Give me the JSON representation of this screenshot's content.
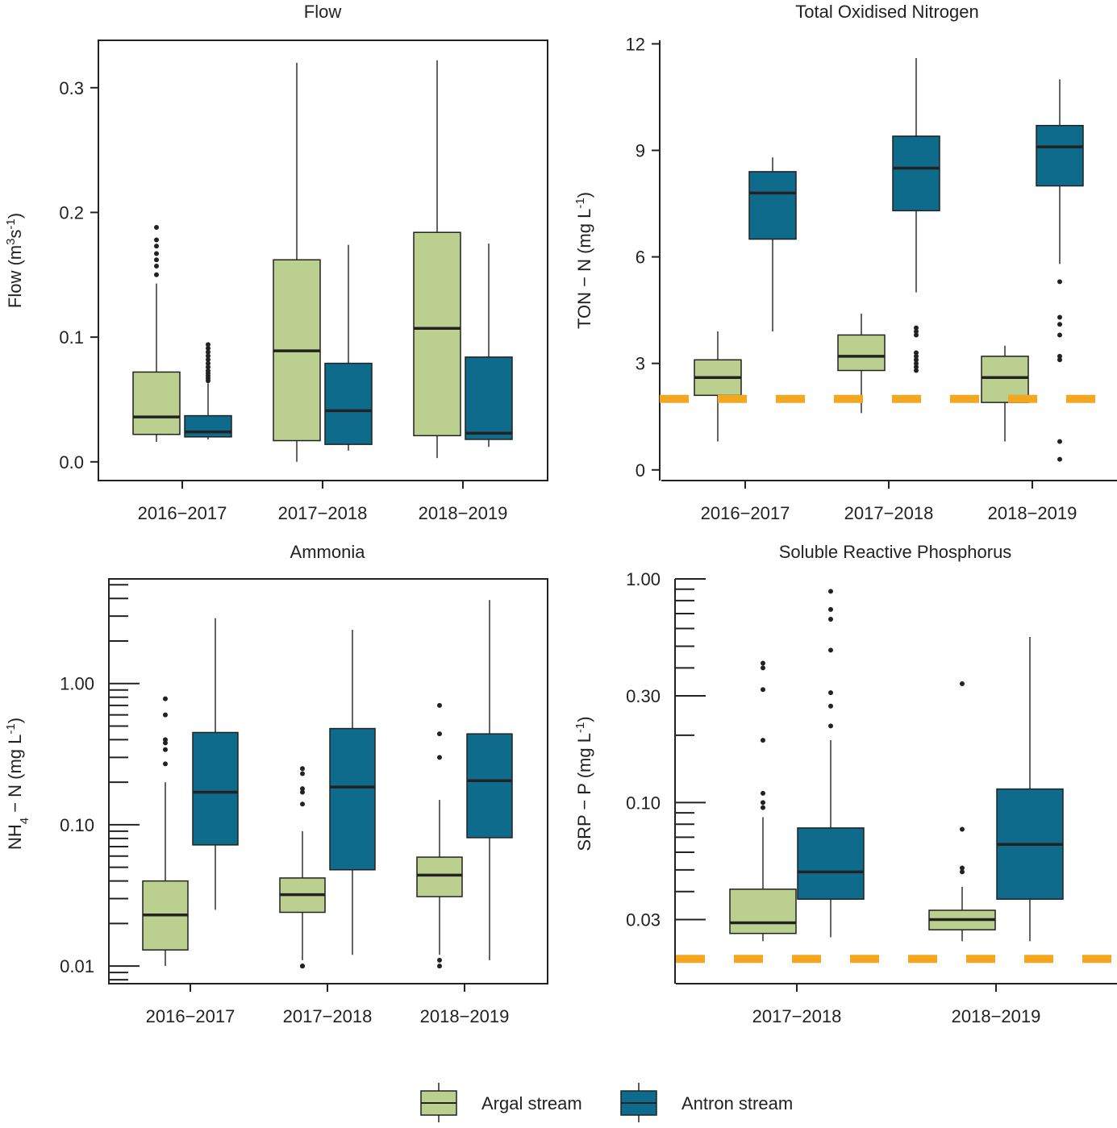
{
  "colors": {
    "argal": "#bbcf8f",
    "antron": "#0f6b8c",
    "threshold": "#f3a620"
  },
  "legend": {
    "position": "bottom-center",
    "items": [
      {
        "label": "Argal stream",
        "color": "#bbcf8f"
      },
      {
        "label": "Antron stream",
        "color": "#0f6b8c"
      }
    ]
  },
  "chart_data": [
    {
      "id": "flow",
      "type": "box",
      "title": "Flow",
      "ylabel": "Flow (m³s⁻¹)",
      "scale": "linear",
      "ylim": [
        -0.015,
        0.338
      ],
      "yticks": [
        0,
        0.1,
        0.2,
        0.3
      ],
      "ytick_labels": [
        "0.0",
        "0.1",
        "0.2",
        "0.3"
      ],
      "categories": [
        "2016−2017",
        "2017−2018",
        "2018−2019"
      ],
      "series": [
        {
          "name": "Argal stream",
          "boxes": [
            {
              "min": 0.016,
              "q1": 0.022,
              "median": 0.036,
              "q3": 0.072,
              "max": 0.143,
              "outliers": [
                0.15,
                0.157,
                0.162,
                0.167,
                0.173,
                0.178,
                0.188
              ]
            },
            {
              "min": 0.0,
              "q1": 0.017,
              "median": 0.089,
              "q3": 0.162,
              "max": 0.32,
              "outliers": []
            },
            {
              "min": 0.003,
              "q1": 0.021,
              "median": 0.107,
              "q3": 0.184,
              "max": 0.322,
              "outliers": []
            }
          ]
        },
        {
          "name": "Antron stream",
          "boxes": [
            {
              "min": 0.018,
              "q1": 0.02,
              "median": 0.024,
              "q3": 0.037,
              "max": 0.063,
              "outliers": [
                0.065,
                0.067,
                0.069,
                0.071,
                0.073,
                0.076,
                0.079,
                0.082,
                0.085,
                0.088,
                0.091,
                0.094
              ]
            },
            {
              "min": 0.009,
              "q1": 0.014,
              "median": 0.041,
              "q3": 0.079,
              "max": 0.174,
              "outliers": []
            },
            {
              "min": 0.012,
              "q1": 0.018,
              "median": 0.023,
              "q3": 0.084,
              "max": 0.175,
              "outliers": []
            }
          ]
        }
      ]
    },
    {
      "id": "ton",
      "type": "box",
      "title": "Total Oxidised Nitrogen",
      "ylabel": "TON − N (mg L⁻¹)",
      "scale": "linear",
      "ylim": [
        -0.3,
        12.1
      ],
      "yticks": [
        0,
        3,
        6,
        9,
        12
      ],
      "ytick_labels": [
        "0",
        "3",
        "6",
        "9",
        "12"
      ],
      "threshold": 2.0,
      "categories": [
        "2016−2017",
        "2017−2018",
        "2018−2019"
      ],
      "series": [
        {
          "name": "Argal stream",
          "boxes": [
            {
              "min": 0.8,
              "q1": 2.1,
              "median": 2.6,
              "q3": 3.1,
              "max": 3.9,
              "outliers": []
            },
            {
              "min": 1.6,
              "q1": 2.8,
              "median": 3.2,
              "q3": 3.8,
              "max": 4.4,
              "outliers": []
            },
            {
              "min": 0.8,
              "q1": 1.9,
              "median": 2.6,
              "q3": 3.2,
              "max": 3.5,
              "outliers": []
            }
          ]
        },
        {
          "name": "Antron stream",
          "boxes": [
            {
              "min": 3.9,
              "q1": 6.5,
              "median": 7.8,
              "q3": 8.4,
              "max": 8.8,
              "outliers": []
            },
            {
              "min": 5.0,
              "q1": 7.3,
              "median": 8.5,
              "q3": 9.4,
              "max": 11.6,
              "outliers": [
                2.8,
                2.9,
                3.0,
                3.1,
                3.2,
                3.3,
                3.8,
                3.9,
                4.0
              ]
            },
            {
              "min": 5.8,
              "q1": 8.0,
              "median": 9.1,
              "q3": 9.7,
              "max": 11.0,
              "outliers": [
                0.3,
                0.8,
                3.1,
                3.2,
                3.8,
                4.1,
                4.3,
                5.3
              ]
            }
          ]
        }
      ]
    },
    {
      "id": "ammonia",
      "type": "box",
      "title": "Ammonia",
      "ylabel": "NH₄ − N (mg L⁻¹)",
      "scale": "log",
      "ylim": [
        0.0075,
        5.5
      ],
      "yticks": [
        0.01,
        0.1,
        1
      ],
      "ytick_labels": [
        "0.01",
        "0.10",
        "1.00"
      ],
      "categories": [
        "2016−2017",
        "2017−2018",
        "2018−2019"
      ],
      "series": [
        {
          "name": "Argal stream",
          "boxes": [
            {
              "min": 0.01,
              "q1": 0.013,
              "median": 0.023,
              "q3": 0.04,
              "max": 0.2,
              "outliers": [
                0.27,
                0.34,
                0.38,
                0.4,
                0.6,
                0.78
              ]
            },
            {
              "min": 0.011,
              "q1": 0.024,
              "median": 0.032,
              "q3": 0.042,
              "max": 0.09,
              "outliers": [
                0.01,
                0.01,
                0.14,
                0.17,
                0.18,
                0.23,
                0.25
              ]
            },
            {
              "min": 0.012,
              "q1": 0.031,
              "median": 0.044,
              "q3": 0.059,
              "max": 0.15,
              "outliers": [
                0.01,
                0.011,
                0.3,
                0.44,
                0.7
              ]
            }
          ]
        },
        {
          "name": "Antron stream",
          "boxes": [
            {
              "min": 0.025,
              "q1": 0.072,
              "median": 0.17,
              "q3": 0.45,
              "max": 2.9,
              "outliers": []
            },
            {
              "min": 0.012,
              "q1": 0.048,
              "median": 0.185,
              "q3": 0.48,
              "max": 2.4,
              "outliers": []
            },
            {
              "min": 0.011,
              "q1": 0.081,
              "median": 0.205,
              "q3": 0.44,
              "max": 3.9,
              "outliers": []
            }
          ]
        }
      ]
    },
    {
      "id": "srp",
      "type": "box",
      "title": "Soluble Reactive Phosphorus",
      "ylabel": "SRP − P (mg L⁻¹)",
      "scale": "log",
      "ylim": [
        0.0155,
        1.0
      ],
      "yticks": [
        0.03,
        0.1,
        0.3,
        1.0
      ],
      "ytick_labels": [
        "0.03",
        "0.10",
        "0.30",
        "1.00"
      ],
      "threshold": 0.02,
      "categories": [
        "2017−2018",
        "2018−2019"
      ],
      "series": [
        {
          "name": "Argal stream",
          "boxes": [
            {
              "min": 0.024,
              "q1": 0.026,
              "median": 0.029,
              "q3": 0.041,
              "max": 0.086,
              "outliers": [
                0.095,
                0.1,
                0.11,
                0.19,
                0.32,
                0.4,
                0.42
              ]
            },
            {
              "min": 0.024,
              "q1": 0.027,
              "median": 0.03,
              "q3": 0.033,
              "max": 0.042,
              "outliers": [
                0.049,
                0.051,
                0.076,
                0.34
              ]
            }
          ]
        },
        {
          "name": "Antron stream",
          "boxes": [
            {
              "min": 0.025,
              "q1": 0.037,
              "median": 0.049,
              "q3": 0.077,
              "max": 0.19,
              "outliers": [
                0.22,
                0.27,
                0.31,
                0.48,
                0.66,
                0.73,
                0.88
              ]
            },
            {
              "min": 0.024,
              "q1": 0.037,
              "median": 0.065,
              "q3": 0.115,
              "max": 0.55,
              "outliers": []
            }
          ]
        }
      ]
    }
  ]
}
